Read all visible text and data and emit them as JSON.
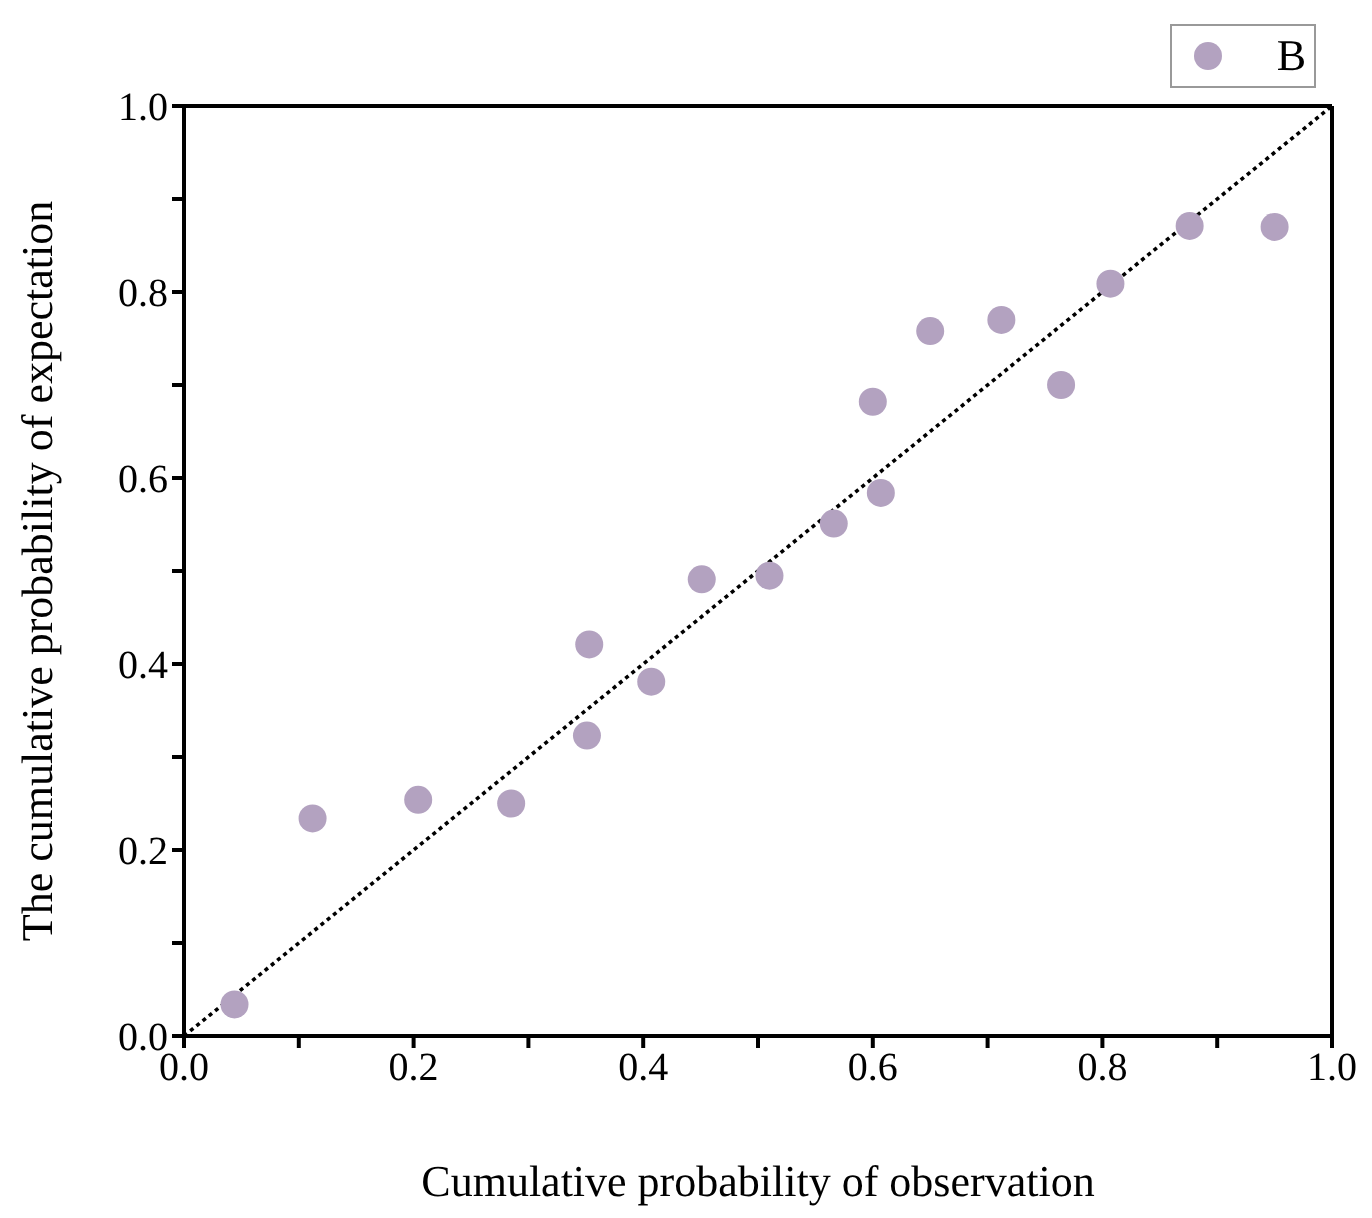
{
  "chart_data": {
    "type": "scatter",
    "xlabel": "Cumulative probability of observation",
    "ylabel": "The cumulative probability of expectation",
    "xlim": [
      0,
      1
    ],
    "ylim": [
      0,
      1
    ],
    "xticks": [
      {
        "value": 0,
        "label": "0.0"
      },
      {
        "value": 0.1,
        "label": null
      },
      {
        "value": 0.2,
        "label": "0.2"
      },
      {
        "value": 0.3,
        "label": null
      },
      {
        "value": 0.4,
        "label": "0.4"
      },
      {
        "value": 0.5,
        "label": null
      },
      {
        "value": 0.6,
        "label": "0.6"
      },
      {
        "value": 0.7,
        "label": null
      },
      {
        "value": 0.8,
        "label": "0.8"
      },
      {
        "value": 0.9,
        "label": null
      },
      {
        "value": 1,
        "label": "1.0"
      }
    ],
    "yticks": [
      {
        "value": 0,
        "label": "0.0"
      },
      {
        "value": 0.1,
        "label": null
      },
      {
        "value": 0.2,
        "label": "0.2"
      },
      {
        "value": 0.3,
        "label": null
      },
      {
        "value": 0.4,
        "label": "0.4"
      },
      {
        "value": 0.5,
        "label": null
      },
      {
        "value": 0.6,
        "label": "0.6"
      },
      {
        "value": 0.7,
        "label": null
      },
      {
        "value": 0.8,
        "label": "0.8"
      },
      {
        "value": 0.9,
        "label": null
      },
      {
        "value": 1,
        "label": "1.0"
      }
    ],
    "legend": "top right",
    "marker": "circle",
    "series": [
      {
        "name": "B",
        "color": "#b3a2c0",
        "x": [
          0.044,
          0.112,
          0.204,
          0.285,
          0.353,
          0.351,
          0.407,
          0.451,
          0.51,
          0.566,
          0.607,
          0.6,
          0.65,
          0.712,
          0.764,
          0.807,
          0.876,
          0.95
        ],
        "values": [
          0.034,
          0.234,
          0.254,
          0.25,
          0.421,
          0.323,
          0.381,
          0.491,
          0.495,
          0.551,
          0.584,
          0.682,
          0.758,
          0.77,
          0.7,
          0.809,
          0.871,
          0.87
        ]
      },
      {
        "type": "line",
        "color": "#000000",
        "line_style": "dotted",
        "marker": "none",
        "x": [
          0,
          1
        ],
        "values": [
          0,
          1
        ]
      }
    ]
  }
}
